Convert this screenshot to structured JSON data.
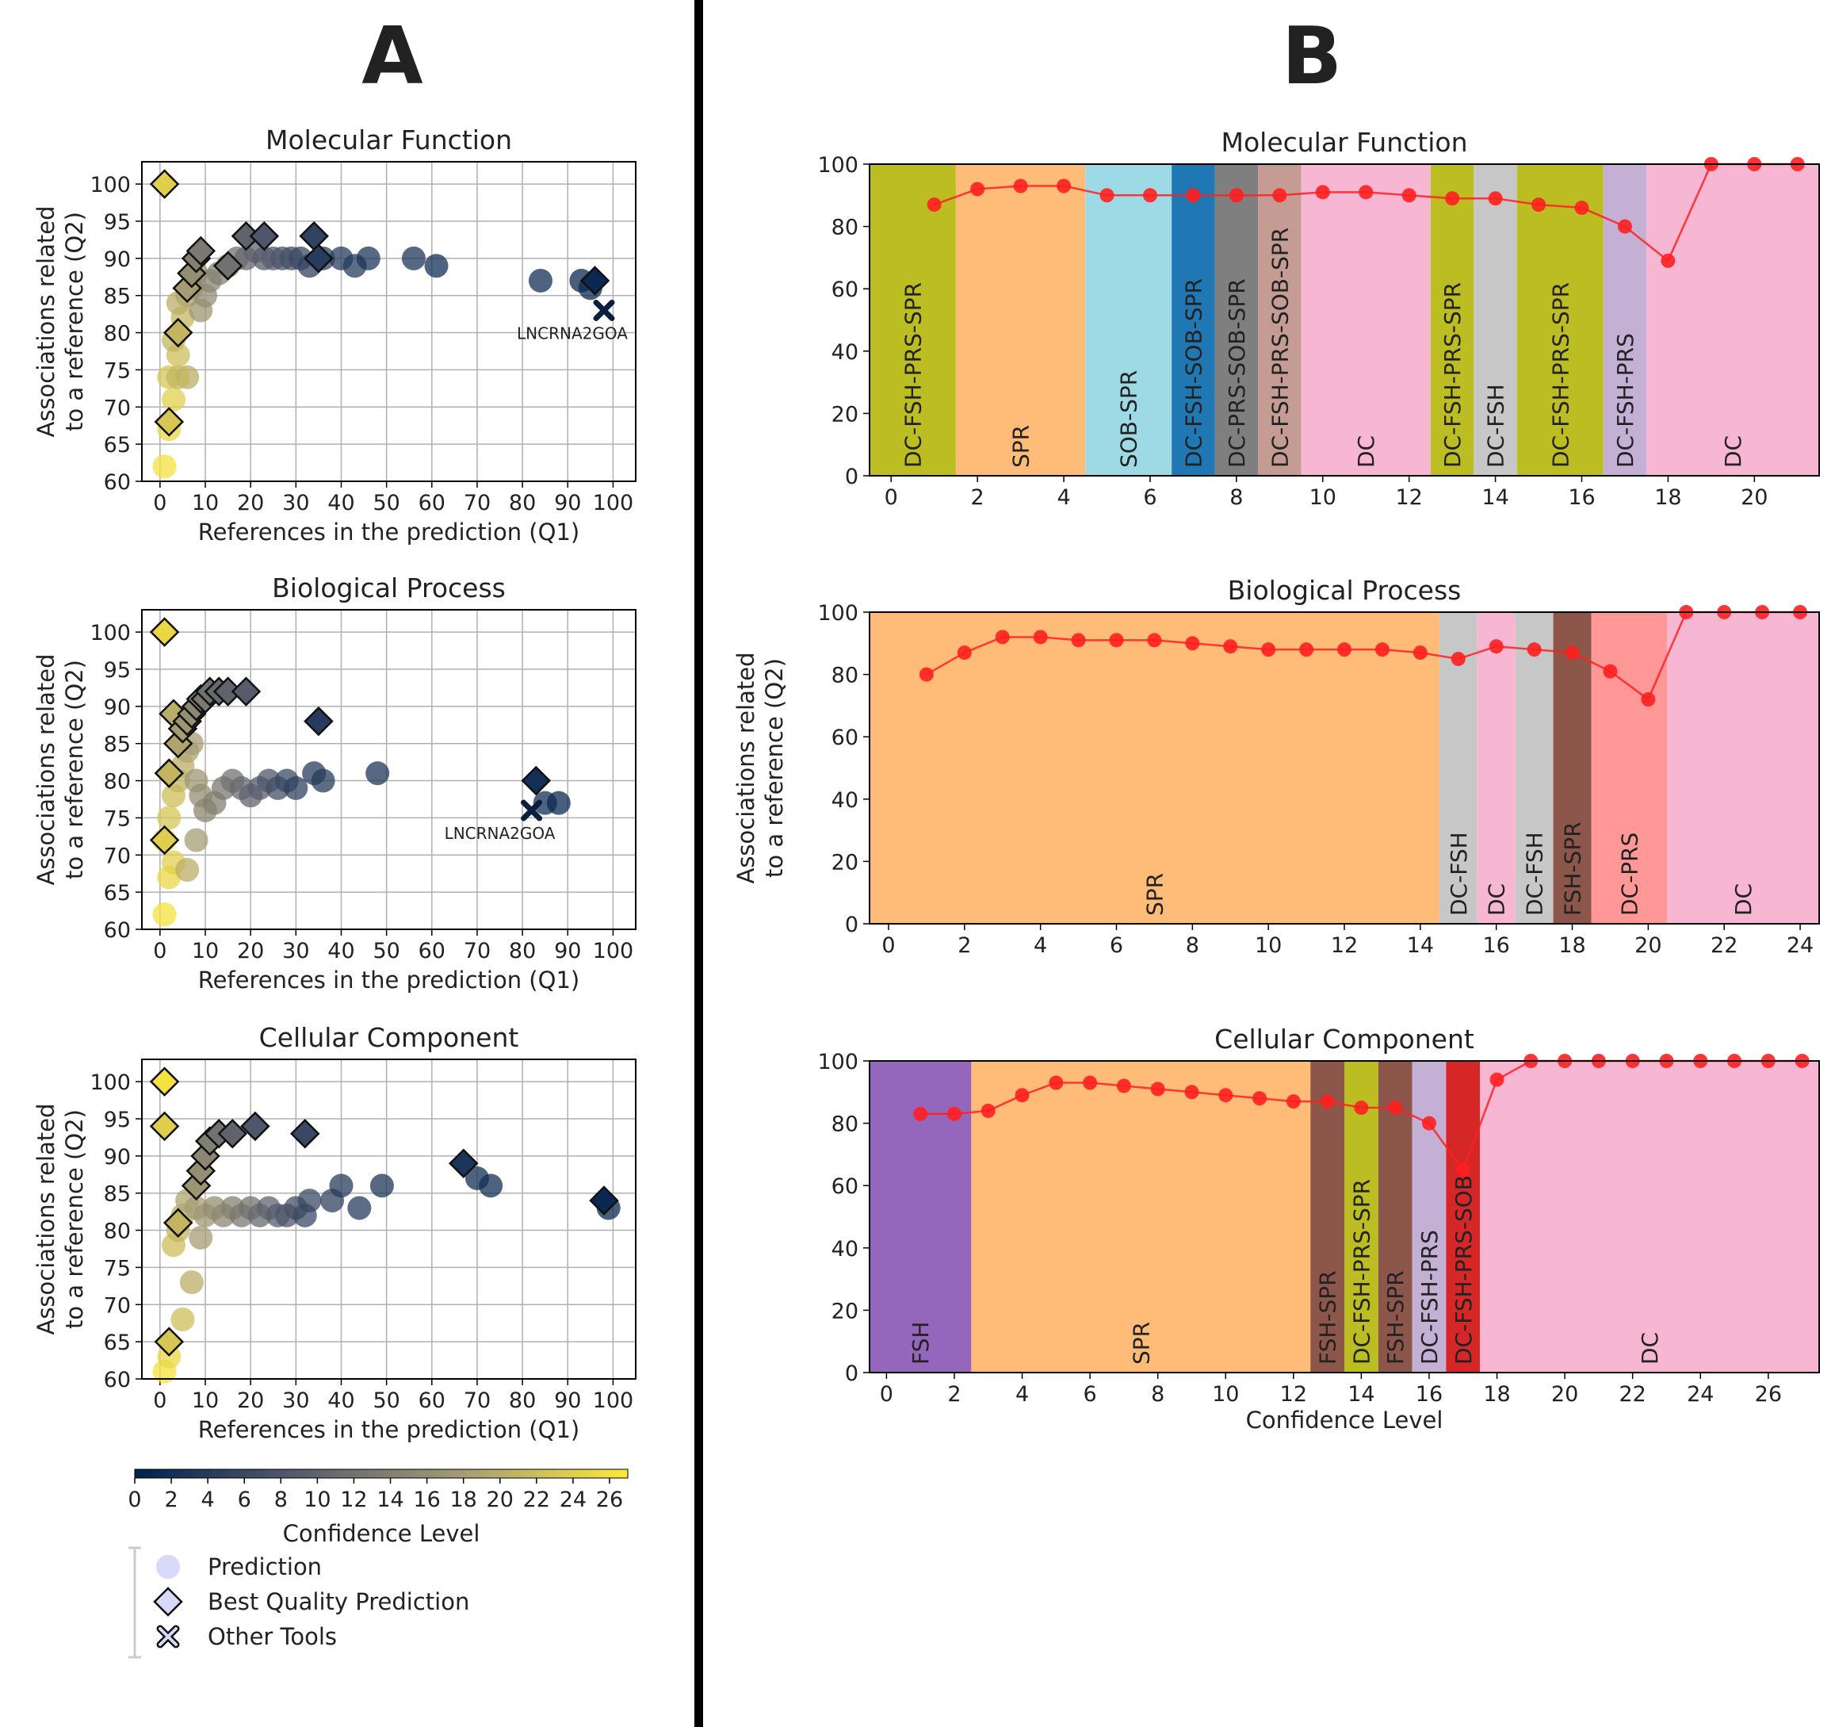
{
  "panel_labels": [
    "A",
    "B"
  ],
  "colorbar": {
    "label": "Confidence Level",
    "ticks": [
      "0",
      "2",
      "4",
      "6",
      "8",
      "10",
      "12",
      "14",
      "16",
      "18",
      "20",
      "22",
      "24",
      "26"
    ],
    "range": [
      0,
      27
    ],
    "colormap": [
      "#00224e",
      "#575c6d",
      "#a59c74",
      "#fee838"
    ]
  },
  "legend": {
    "items": [
      {
        "label": "Prediction",
        "marker": "circle"
      },
      {
        "label": "Best Quality Prediction",
        "marker": "diamond"
      },
      {
        "label": "Other Tools",
        "marker": "x"
      }
    ]
  },
  "scatter_common": {
    "xlabel": "References in the prediction (Q1)",
    "ylabel_lines": [
      "Associations related",
      "to a reference (Q2)"
    ],
    "xticks": [
      "0",
      "10",
      "20",
      "30",
      "40",
      "50",
      "60",
      "70",
      "80",
      "90",
      "100"
    ],
    "yticks": [
      "60",
      "65",
      "70",
      "75",
      "80",
      "85",
      "90",
      "95",
      "100"
    ]
  },
  "line_common": {
    "ylabel_lines": [
      "Associations related",
      "to a reference (Q2)"
    ],
    "yticks": [
      "0",
      "20",
      "40",
      "60",
      "80",
      "100"
    ],
    "xlabel": "Confidence Level"
  },
  "chart_data": [
    {
      "type": "scatter",
      "title": "Molecular Function",
      "xlim": [
        -4,
        105
      ],
      "ylim": [
        60,
        103
      ],
      "prediction": [
        [
          1,
          62,
          26
        ],
        [
          2,
          67,
          25
        ],
        [
          3,
          71,
          24
        ],
        [
          2,
          74,
          23
        ],
        [
          4,
          77,
          22
        ],
        [
          3,
          79,
          21
        ],
        [
          5,
          82,
          21
        ],
        [
          4,
          84,
          20
        ],
        [
          6,
          85,
          19
        ],
        [
          7,
          86,
          18
        ],
        [
          8,
          88,
          17
        ],
        [
          9,
          83,
          17
        ],
        [
          10,
          85,
          16
        ],
        [
          11,
          87,
          15
        ],
        [
          13,
          88,
          14
        ],
        [
          15,
          89,
          13
        ],
        [
          17,
          90,
          12
        ],
        [
          19,
          90,
          11
        ],
        [
          21,
          91,
          10
        ],
        [
          23,
          90,
          9
        ],
        [
          25,
          90,
          9
        ],
        [
          27,
          90,
          8
        ],
        [
          29,
          90,
          7
        ],
        [
          31,
          90,
          6
        ],
        [
          33,
          89,
          5
        ],
        [
          36,
          90,
          5
        ],
        [
          40,
          90,
          4
        ],
        [
          43,
          89,
          4
        ],
        [
          46,
          90,
          3
        ],
        [
          56,
          90,
          3
        ],
        [
          61,
          89,
          2
        ],
        [
          84,
          87,
          2
        ],
        [
          93,
          87,
          1
        ],
        [
          95,
          86,
          1
        ],
        [
          6,
          74,
          20
        ],
        [
          4,
          74,
          21
        ]
      ],
      "best": [
        [
          1,
          100,
          24
        ],
        [
          2,
          68,
          23
        ],
        [
          4,
          80,
          21
        ],
        [
          6,
          86,
          18
        ],
        [
          7,
          88,
          16
        ],
        [
          8,
          90,
          14
        ],
        [
          9,
          91,
          13
        ],
        [
          15,
          89,
          12
        ],
        [
          19,
          93,
          10
        ],
        [
          23,
          93,
          8
        ],
        [
          34,
          93,
          5
        ],
        [
          35,
          90,
          4
        ],
        [
          96,
          87,
          1
        ]
      ],
      "other_tools": [
        {
          "label": "LNCRNA2GOA",
          "x": 98,
          "y": 83
        }
      ]
    },
    {
      "type": "scatter",
      "title": "Biological Process",
      "xlim": [
        -4,
        105
      ],
      "ylim": [
        60,
        103
      ],
      "prediction": [
        [
          1,
          62,
          26
        ],
        [
          2,
          67,
          25
        ],
        [
          3,
          69,
          24
        ],
        [
          1,
          72,
          25
        ],
        [
          2,
          75,
          23
        ],
        [
          3,
          78,
          22
        ],
        [
          4,
          80,
          21
        ],
        [
          5,
          82,
          20
        ],
        [
          6,
          84,
          19
        ],
        [
          7,
          85,
          18
        ],
        [
          8,
          80,
          17
        ],
        [
          9,
          78,
          16
        ],
        [
          10,
          76,
          15
        ],
        [
          12,
          77,
          14
        ],
        [
          14,
          79,
          13
        ],
        [
          16,
          80,
          12
        ],
        [
          18,
          79,
          11
        ],
        [
          20,
          78,
          10
        ],
        [
          22,
          79,
          9
        ],
        [
          24,
          80,
          8
        ],
        [
          26,
          79,
          7
        ],
        [
          28,
          80,
          6
        ],
        [
          30,
          79,
          5
        ],
        [
          34,
          81,
          4
        ],
        [
          36,
          80,
          4
        ],
        [
          48,
          81,
          3
        ],
        [
          85,
          77,
          2
        ],
        [
          88,
          77,
          1
        ],
        [
          6,
          68,
          20
        ],
        [
          8,
          72,
          18
        ]
      ],
      "best": [
        [
          1,
          100,
          25
        ],
        [
          1,
          72,
          24
        ],
        [
          2,
          81,
          21
        ],
        [
          3,
          89,
          20
        ],
        [
          4,
          85,
          19
        ],
        [
          5,
          87,
          18
        ],
        [
          6,
          88,
          17
        ],
        [
          7,
          89,
          16
        ],
        [
          8,
          90,
          15
        ],
        [
          9,
          91,
          14
        ],
        [
          10,
          91,
          13
        ],
        [
          11,
          92,
          12
        ],
        [
          13,
          92,
          11
        ],
        [
          15,
          92,
          10
        ],
        [
          19,
          92,
          9
        ],
        [
          35,
          88,
          4
        ],
        [
          83,
          80,
          2
        ]
      ],
      "other_tools": [
        {
          "label": "LNCRNA2GOA",
          "x": 82,
          "y": 76
        }
      ]
    },
    {
      "type": "scatter",
      "title": "Cellular Component",
      "xlim": [
        -4,
        105
      ],
      "ylim": [
        60,
        103
      ],
      "prediction": [
        [
          1,
          61,
          26
        ],
        [
          2,
          63,
          25
        ],
        [
          5,
          68,
          22
        ],
        [
          7,
          73,
          20
        ],
        [
          3,
          78,
          22
        ],
        [
          4,
          80,
          21
        ],
        [
          5,
          82,
          20
        ],
        [
          6,
          84,
          19
        ],
        [
          8,
          83,
          18
        ],
        [
          10,
          82,
          17
        ],
        [
          12,
          83,
          16
        ],
        [
          14,
          82,
          15
        ],
        [
          16,
          83,
          14
        ],
        [
          18,
          82,
          13
        ],
        [
          20,
          83,
          12
        ],
        [
          22,
          82,
          11
        ],
        [
          24,
          83,
          10
        ],
        [
          26,
          82,
          9
        ],
        [
          28,
          82,
          8
        ],
        [
          30,
          83,
          7
        ],
        [
          32,
          82,
          6
        ],
        [
          33,
          84,
          6
        ],
        [
          38,
          84,
          5
        ],
        [
          40,
          86,
          4
        ],
        [
          44,
          83,
          4
        ],
        [
          49,
          86,
          3
        ],
        [
          70,
          87,
          2
        ],
        [
          73,
          86,
          2
        ],
        [
          99,
          83,
          1
        ],
        [
          9,
          79,
          18
        ]
      ],
      "best": [
        [
          1,
          100,
          26
        ],
        [
          1,
          94,
          24
        ],
        [
          2,
          65,
          23
        ],
        [
          4,
          81,
          21
        ],
        [
          8,
          86,
          17
        ],
        [
          9,
          88,
          16
        ],
        [
          10,
          90,
          15
        ],
        [
          11,
          92,
          14
        ],
        [
          13,
          93,
          12
        ],
        [
          16,
          93,
          10
        ],
        [
          21,
          94,
          8
        ],
        [
          32,
          93,
          6
        ],
        [
          67,
          89,
          3
        ],
        [
          98,
          84,
          1
        ]
      ],
      "other_tools": []
    },
    {
      "type": "line",
      "title": "Molecular Function",
      "xlim": [
        -0.5,
        21.5
      ],
      "ylim": [
        0,
        100
      ],
      "xticks": [
        "0",
        "2",
        "4",
        "6",
        "8",
        "10",
        "12",
        "14",
        "16",
        "18",
        "20"
      ],
      "x": [
        1,
        2,
        3,
        4,
        5,
        6,
        7,
        8,
        9,
        10,
        11,
        12,
        13,
        14,
        15,
        16,
        17,
        18,
        19,
        20,
        21
      ],
      "y": [
        87,
        92,
        93,
        93,
        90,
        90,
        90,
        90,
        90,
        91,
        91,
        90,
        89,
        89,
        87,
        86,
        80,
        69,
        100,
        100,
        100
      ],
      "bands": [
        {
          "start": -0.5,
          "end": 1.5,
          "label": "DC-FSH-PRS-SPR",
          "color": "#bcbd22"
        },
        {
          "start": 1.5,
          "end": 4.5,
          "label": "SPR",
          "color": "#ffbb78"
        },
        {
          "start": 4.5,
          "end": 6.5,
          "label": "SOB-SPR",
          "color": "#9edae5"
        },
        {
          "start": 6.5,
          "end": 7.5,
          "label": "DC-FSH-SOB-SPR",
          "color": "#1f77b4"
        },
        {
          "start": 7.5,
          "end": 8.5,
          "label": "DC-PRS-SOB-SPR",
          "color": "#7f7f7f"
        },
        {
          "start": 8.5,
          "end": 9.5,
          "label": "DC-FSH-PRS-SOB-SPR",
          "color": "#c49c94"
        },
        {
          "start": 9.5,
          "end": 12.5,
          "label": "DC",
          "color": "#f7b6d2"
        },
        {
          "start": 12.5,
          "end": 13.5,
          "label": "DC-FSH-PRS-SPR",
          "color": "#bcbd22"
        },
        {
          "start": 13.5,
          "end": 14.5,
          "label": "DC-FSH",
          "color": "#c7c7c7"
        },
        {
          "start": 14.5,
          "end": 16.5,
          "label": "DC-FSH-PRS-SPR",
          "color": "#bcbd22"
        },
        {
          "start": 16.5,
          "end": 17.5,
          "label": "DC-FSH-PRS",
          "color": "#c5b0d5"
        },
        {
          "start": 17.5,
          "end": 21.5,
          "label": "DC",
          "color": "#f7b6d2"
        }
      ]
    },
    {
      "type": "line",
      "title": "Biological Process",
      "xlim": [
        -0.5,
        24.5
      ],
      "ylim": [
        0,
        100
      ],
      "xticks": [
        "0",
        "2",
        "4",
        "6",
        "8",
        "10",
        "12",
        "14",
        "16",
        "18",
        "20",
        "22",
        "24"
      ],
      "x": [
        1,
        2,
        3,
        4,
        5,
        6,
        7,
        8,
        9,
        10,
        11,
        12,
        13,
        14,
        15,
        16,
        17,
        18,
        19,
        20,
        21,
        22,
        23,
        24
      ],
      "y": [
        80,
        87,
        92,
        92,
        91,
        91,
        91,
        90,
        89,
        88,
        88,
        88,
        88,
        87,
        85,
        89,
        88,
        87,
        81,
        72,
        100,
        100,
        100,
        100
      ],
      "bands": [
        {
          "start": -0.5,
          "end": 14.5,
          "label": "SPR",
          "color": "#ffbb78"
        },
        {
          "start": 14.5,
          "end": 15.5,
          "label": "DC-FSH",
          "color": "#c7c7c7"
        },
        {
          "start": 15.5,
          "end": 16.5,
          "label": "DC",
          "color": "#f7b6d2"
        },
        {
          "start": 16.5,
          "end": 17.5,
          "label": "DC-FSH",
          "color": "#c7c7c7"
        },
        {
          "start": 17.5,
          "end": 18.5,
          "label": "FSH-SPR",
          "color": "#8c564b"
        },
        {
          "start": 18.5,
          "end": 20.5,
          "label": "DC-PRS",
          "color": "#ff9896"
        },
        {
          "start": 20.5,
          "end": 24.5,
          "label": "DC",
          "color": "#f7b6d2"
        }
      ]
    },
    {
      "type": "line",
      "title": "Cellular Component",
      "xlim": [
        -0.5,
        27.5
      ],
      "ylim": [
        0,
        100
      ],
      "xticks": [
        "0",
        "2",
        "4",
        "6",
        "8",
        "10",
        "12",
        "14",
        "16",
        "18",
        "20",
        "22",
        "24",
        "26"
      ],
      "x": [
        1,
        2,
        3,
        4,
        5,
        6,
        7,
        8,
        9,
        10,
        11,
        12,
        13,
        14,
        15,
        16,
        17,
        18,
        19,
        20,
        21,
        22,
        23,
        24,
        25,
        26,
        27
      ],
      "y": [
        83,
        83,
        84,
        89,
        93,
        93,
        92,
        91,
        90,
        89,
        88,
        87,
        87,
        85,
        85,
        80,
        65,
        94,
        100,
        100,
        100,
        100,
        100,
        100,
        100,
        100,
        100
      ],
      "bands": [
        {
          "start": -0.5,
          "end": 2.5,
          "label": "FSH",
          "color": "#9467bd"
        },
        {
          "start": 2.5,
          "end": 12.5,
          "label": "SPR",
          "color": "#ffbb78"
        },
        {
          "start": 12.5,
          "end": 13.5,
          "label": "FSH-SPR",
          "color": "#8c564b"
        },
        {
          "start": 13.5,
          "end": 14.5,
          "label": "DC-FSH-PRS-SPR",
          "color": "#bcbd22"
        },
        {
          "start": 14.5,
          "end": 15.5,
          "label": "FSH-SPR",
          "color": "#8c564b"
        },
        {
          "start": 15.5,
          "end": 16.5,
          "label": "DC-FSH-PRS",
          "color": "#c5b0d5"
        },
        {
          "start": 16.5,
          "end": 17.5,
          "label": "DC-FSH-PRS-SOB",
          "color": "#d62728"
        },
        {
          "start": 17.5,
          "end": 27.5,
          "label": "DC",
          "color": "#f7b6d2"
        }
      ]
    }
  ]
}
